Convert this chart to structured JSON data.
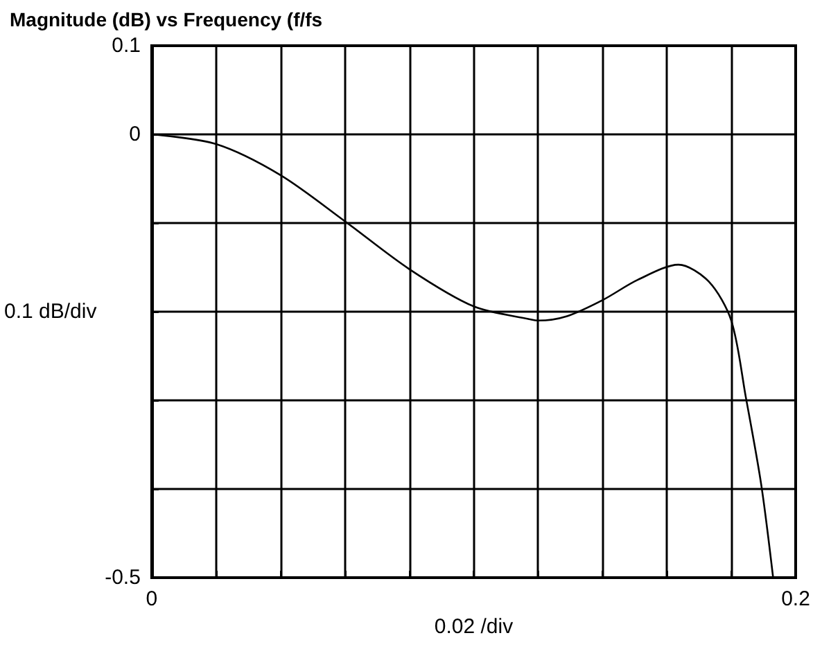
{
  "chart_data": {
    "type": "line",
    "title": "Magnitude (dB) vs Frequency (f/fs",
    "xlabel": "0.02 /div",
    "ylabel": "0.1 dB/div",
    "xlim": [
      0,
      0.2
    ],
    "ylim": [
      -0.5,
      0.1
    ],
    "xticks": [
      0,
      {
        "value": 0.02,
        "label": null
      },
      {
        "value": 0.04,
        "label": null
      },
      {
        "value": 0.06,
        "label": null
      },
      {
        "value": 0.08,
        "label": null
      },
      {
        "value": 0.1,
        "label": null
      },
      {
        "value": 0.12,
        "label": null
      },
      {
        "value": 0.14,
        "label": null
      },
      {
        "value": 0.16,
        "label": null
      },
      {
        "value": 0.18,
        "label": null
      },
      0.2
    ],
    "yticks": [
      -0.5,
      {
        "value": -0.4,
        "label": null
      },
      {
        "value": -0.3,
        "label": null
      },
      {
        "value": -0.2,
        "label": null
      },
      {
        "value": -0.1,
        "label": null
      },
      0,
      0.1
    ],
    "grid": true,
    "marker": "none",
    "line_style": "solid",
    "series": [
      {
        "color": "#000000",
        "x": [
          0,
          0.02,
          0.04,
          0.06,
          0.08,
          0.1,
          0.118,
          0.12,
          0.129,
          0.14,
          0.151,
          0.1636,
          0.173,
          0.18,
          0.1845,
          0.1893,
          0.193
        ],
        "values": [
          0,
          -0.011,
          -0.046,
          -0.098,
          -0.152,
          -0.194,
          -0.209,
          -0.21,
          -0.205,
          -0.187,
          -0.164,
          -0.147,
          -0.166,
          -0.21,
          -0.296,
          -0.395,
          -0.5
        ]
      }
    ]
  }
}
